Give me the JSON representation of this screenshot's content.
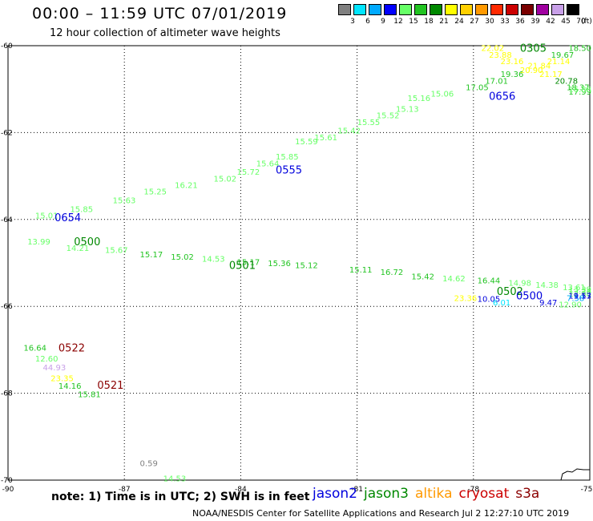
{
  "header": {
    "title": "00:00 – 11:59 UTC 07/01/2019",
    "subtitle": "12 hour collection of altimeter wave heights"
  },
  "legend": {
    "unit": "(ft)",
    "bins": [
      {
        "label": "3",
        "color": "#808080"
      },
      {
        "label": "6",
        "color": "#00e5ff"
      },
      {
        "label": "9",
        "color": "#00aaff"
      },
      {
        "label": "12",
        "color": "#0000ff"
      },
      {
        "label": "15",
        "color": "#66ff66"
      },
      {
        "label": "18",
        "color": "#22c422"
      },
      {
        "label": "21",
        "color": "#008800"
      },
      {
        "label": "24",
        "color": "#ffff00"
      },
      {
        "label": "27",
        "color": "#ffd000"
      },
      {
        "label": "30",
        "color": "#ff9900"
      },
      {
        "label": "33",
        "color": "#ff2a00"
      },
      {
        "label": "36",
        "color": "#cc0000"
      },
      {
        "label": "39",
        "color": "#7a0000"
      },
      {
        "label": "42",
        "color": "#a000a0"
      },
      {
        "label": "45",
        "color": "#c8a0e8"
      },
      {
        "label": "70",
        "color": "#000000"
      }
    ]
  },
  "axes": {
    "lon_labels": [
      "-90",
      "-87",
      "-84",
      "-81",
      "-78",
      "-75"
    ],
    "lat_labels": [
      "-60",
      "-62",
      "-64",
      "-66",
      "-68",
      "-70"
    ]
  },
  "note": "note: 1) Time is in UTC; 2) SWH is in feet",
  "satellites": [
    {
      "name": "jason2",
      "color": "#0000dd"
    },
    {
      "name": "jason3",
      "color": "#008800"
    },
    {
      "name": "altika",
      "color": "#ff9900"
    },
    {
      "name": "cryosat",
      "color": "#cc0000"
    },
    {
      "name": "s3a",
      "color": "#8b0000"
    }
  ],
  "footer": "NOAA/NESDIS Center for Satellite Applications and Research    Jul  2 12:27:10 UTC 2019",
  "track_times": [
    {
      "text": "0305",
      "lon": -76.8,
      "lat": -60.05,
      "color": "#008800"
    },
    {
      "text": "0656",
      "lon": -77.6,
      "lat": -61.15,
      "color": "#0000dd"
    },
    {
      "text": "0555",
      "lon": -83.1,
      "lat": -62.85,
      "color": "#0000dd"
    },
    {
      "text": "0654",
      "lon": -88.8,
      "lat": -63.95,
      "color": "#0000dd"
    },
    {
      "text": "0500",
      "lon": -88.3,
      "lat": -64.5,
      "color": "#008800"
    },
    {
      "text": "0501",
      "lon": -84.3,
      "lat": -65.05,
      "color": "#008800"
    },
    {
      "text": "0502",
      "lon": -77.4,
      "lat": -65.65,
      "color": "#008800"
    },
    {
      "text": "0500",
      "lon": -76.9,
      "lat": -65.75,
      "color": "#0000dd"
    },
    {
      "text": "0522",
      "lon": -88.7,
      "lat": -66.95,
      "color": "#8b0000"
    },
    {
      "text": "0521",
      "lon": -87.7,
      "lat": -67.8,
      "color": "#8b0000"
    }
  ],
  "swh_readings": [
    {
      "text": "18.50",
      "lon": -75.3,
      "lat": -60.05,
      "color": "#22c422"
    },
    {
      "text": "19.67",
      "lon": -76.0,
      "lat": -60.2,
      "color": "#22c422"
    },
    {
      "text": "22.02",
      "lon": -77.8,
      "lat": -60.05,
      "color": "#ffff00"
    },
    {
      "text": "23.88",
      "lon": -77.6,
      "lat": -60.2,
      "color": "#ffff00"
    },
    {
      "text": "23.16",
      "lon": -77.3,
      "lat": -60.35,
      "color": "#ffff00"
    },
    {
      "text": "21.14",
      "lon": -76.1,
      "lat": -60.35,
      "color": "#ffff00"
    },
    {
      "text": "21.84",
      "lon": -76.6,
      "lat": -60.45,
      "color": "#ffff00"
    },
    {
      "text": "20.90",
      "lon": -76.8,
      "lat": -60.55,
      "color": "#ffff00"
    },
    {
      "text": "19.36",
      "lon": -77.3,
      "lat": -60.65,
      "color": "#22c422"
    },
    {
      "text": "21.17",
      "lon": -76.3,
      "lat": -60.65,
      "color": "#ffff00"
    },
    {
      "text": "20.78",
      "lon": -75.9,
      "lat": -60.8,
      "color": "#008800"
    },
    {
      "text": "18.37",
      "lon": -75.6,
      "lat": -60.95,
      "color": "#22c422"
    },
    {
      "text": "17.01",
      "lon": -77.7,
      "lat": -60.8,
      "color": "#22c422"
    },
    {
      "text": "17.99",
      "lon": -75.2,
      "lat": -61.05,
      "color": "#22c422"
    },
    {
      "text": "16.88",
      "lon": -75.05,
      "lat": -61.0,
      "color": "#66ff66"
    },
    {
      "text": "17.05",
      "lon": -78.2,
      "lat": -60.95,
      "color": "#22c422"
    },
    {
      "text": "15.06",
      "lon": -79.1,
      "lat": -61.1,
      "color": "#66ff66"
    },
    {
      "text": "15.16",
      "lon": -79.7,
      "lat": -61.2,
      "color": "#66ff66"
    },
    {
      "text": "15.13",
      "lon": -80.0,
      "lat": -61.45,
      "color": "#66ff66"
    },
    {
      "text": "15.52",
      "lon": -80.5,
      "lat": -61.6,
      "color": "#66ff66"
    },
    {
      "text": "15.55",
      "lon": -81.0,
      "lat": -61.75,
      "color": "#66ff66"
    },
    {
      "text": "15.42",
      "lon": -81.5,
      "lat": -61.95,
      "color": "#66ff66"
    },
    {
      "text": "15.61",
      "lon": -82.1,
      "lat": -62.1,
      "color": "#66ff66"
    },
    {
      "text": "15.59",
      "lon": -82.6,
      "lat": -62.2,
      "color": "#66ff66"
    },
    {
      "text": "15.85",
      "lon": -83.1,
      "lat": -62.55,
      "color": "#66ff66"
    },
    {
      "text": "15.64",
      "lon": -83.6,
      "lat": -62.7,
      "color": "#66ff66"
    },
    {
      "text": "15.72",
      "lon": -84.1,
      "lat": -62.9,
      "color": "#66ff66"
    },
    {
      "text": "15.02",
      "lon": -84.7,
      "lat": -63.05,
      "color": "#66ff66"
    },
    {
      "text": "16.21",
      "lon": -85.7,
      "lat": -63.2,
      "color": "#66ff66"
    },
    {
      "text": "15.25",
      "lon": -86.5,
      "lat": -63.35,
      "color": "#66ff66"
    },
    {
      "text": "15.63",
      "lon": -87.3,
      "lat": -63.55,
      "color": "#66ff66"
    },
    {
      "text": "15.85",
      "lon": -88.4,
      "lat": -63.75,
      "color": "#66ff66"
    },
    {
      "text": "15.01",
      "lon": -89.3,
      "lat": -63.9,
      "color": "#66ff66"
    },
    {
      "text": "13.99",
      "lon": -89.5,
      "lat": -64.5,
      "color": "#66ff66"
    },
    {
      "text": "14.21",
      "lon": -88.5,
      "lat": -64.65,
      "color": "#66ff66"
    },
    {
      "text": "15.67",
      "lon": -87.5,
      "lat": -64.7,
      "color": "#66ff66"
    },
    {
      "text": "15.17",
      "lon": -86.6,
      "lat": -64.8,
      "color": "#22c422"
    },
    {
      "text": "15.02",
      "lon": -85.8,
      "lat": -64.85,
      "color": "#22c422"
    },
    {
      "text": "14.53",
      "lon": -85.0,
      "lat": -64.9,
      "color": "#66ff66"
    },
    {
      "text": "15.17",
      "lon": -84.1,
      "lat": -64.97,
      "color": "#22c422"
    },
    {
      "text": "15.36",
      "lon": -83.3,
      "lat": -65.0,
      "color": "#22c422"
    },
    {
      "text": "15.12",
      "lon": -82.6,
      "lat": -65.05,
      "color": "#22c422"
    },
    {
      "text": "15.11",
      "lon": -81.2,
      "lat": -65.15,
      "color": "#22c422"
    },
    {
      "text": "16.72",
      "lon": -80.4,
      "lat": -65.2,
      "color": "#22c422"
    },
    {
      "text": "15.42",
      "lon": -79.6,
      "lat": -65.3,
      "color": "#22c422"
    },
    {
      "text": "14.62",
      "lon": -78.8,
      "lat": -65.35,
      "color": "#66ff66"
    },
    {
      "text": "16.44",
      "lon": -77.9,
      "lat": -65.4,
      "color": "#22c422"
    },
    {
      "text": "14.98",
      "lon": -77.1,
      "lat": -65.45,
      "color": "#66ff66"
    },
    {
      "text": "14.38",
      "lon": -76.4,
      "lat": -65.5,
      "color": "#66ff66"
    },
    {
      "text": "13.61",
      "lon": -75.7,
      "lat": -65.55,
      "color": "#66ff66"
    },
    {
      "text": "13.39",
      "lon": -75.0,
      "lat": -65.6,
      "color": "#66ff66"
    },
    {
      "text": "13.76",
      "lon": -74.3,
      "lat": -65.65,
      "color": "#66ff66"
    },
    {
      "text": "12.98",
      "lon": -73.6,
      "lat": -65.7,
      "color": "#66ff66"
    },
    {
      "text": "11.53",
      "lon": -72.4,
      "lat": -65.75,
      "color": "#0000dd"
    },
    {
      "text": "23.36",
      "lon": -78.5,
      "lat": -65.8,
      "color": "#ffff00"
    },
    {
      "text": "10.05",
      "lon": -77.9,
      "lat": -65.82,
      "color": "#0000dd"
    },
    {
      "text": "6.01",
      "lon": -77.5,
      "lat": -65.9,
      "color": "#00e5ff"
    },
    {
      "text": "9.47",
      "lon": -76.3,
      "lat": -65.9,
      "color": "#0000dd"
    },
    {
      "text": "7.58",
      "lon": -75.6,
      "lat": -65.8,
      "color": "#00aaff"
    },
    {
      "text": "9.17",
      "lon": -75.1,
      "lat": -65.75,
      "color": "#0000dd"
    },
    {
      "text": "12.90",
      "lon": -75.8,
      "lat": -65.95,
      "color": "#66ff66"
    },
    {
      "text": "16.64",
      "lon": -89.6,
      "lat": -66.95,
      "color": "#22c422"
    },
    {
      "text": "12.60",
      "lon": -89.3,
      "lat": -67.2,
      "color": "#66ff66"
    },
    {
      "text": "44.93",
      "lon": -89.1,
      "lat": -67.4,
      "color": "#c8a0e8"
    },
    {
      "text": "23.35",
      "lon": -88.9,
      "lat": -67.65,
      "color": "#ffff00"
    },
    {
      "text": "14.16",
      "lon": -88.7,
      "lat": -67.82,
      "color": "#22c422"
    },
    {
      "text": "15.81",
      "lon": -88.2,
      "lat": -68.02,
      "color": "#22c422"
    },
    {
      "text": "0.59",
      "lon": -86.6,
      "lat": -69.6,
      "color": "#808080"
    },
    {
      "text": "14.53",
      "lon": -86.0,
      "lat": -69.95,
      "color": "#66ff66"
    }
  ]
}
